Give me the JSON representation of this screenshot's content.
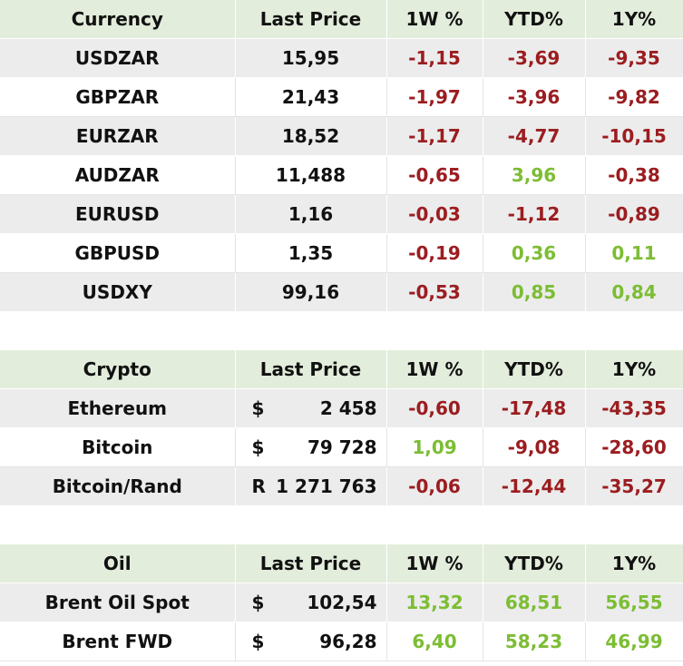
{
  "currency": {
    "header": [
      "Currency",
      "Last Price",
      "1W %",
      "YTD%",
      "1Y%"
    ],
    "rows": [
      {
        "name": "USDZAR",
        "price": "15,95",
        "w1": "-1,15",
        "ytd": "-3,69",
        "y1": "-9,35",
        "w1_sign": "neg",
        "ytd_sign": "neg",
        "y1_sign": "neg"
      },
      {
        "name": "GBPZAR",
        "price": "21,43",
        "w1": "-1,97",
        "ytd": "-3,96",
        "y1": "-9,82",
        "w1_sign": "neg",
        "ytd_sign": "neg",
        "y1_sign": "neg"
      },
      {
        "name": "EURZAR",
        "price": "18,52",
        "w1": "-1,17",
        "ytd": "-4,77",
        "y1": "-10,15",
        "w1_sign": "neg",
        "ytd_sign": "neg",
        "y1_sign": "neg"
      },
      {
        "name": "AUDZAR",
        "price": "11,488",
        "w1": "-0,65",
        "ytd": "3,96",
        "y1": "-0,38",
        "w1_sign": "neg",
        "ytd_sign": "pos",
        "y1_sign": "neg"
      },
      {
        "name": "EURUSD",
        "price": "1,16",
        "w1": "-0,03",
        "ytd": "-1,12",
        "y1": "-0,89",
        "w1_sign": "neg",
        "ytd_sign": "neg",
        "y1_sign": "neg"
      },
      {
        "name": "GBPUSD",
        "price": "1,35",
        "w1": "-0,19",
        "ytd": "0,36",
        "y1": "0,11",
        "w1_sign": "neg",
        "ytd_sign": "pos",
        "y1_sign": "pos"
      },
      {
        "name": "USDXY",
        "price": "99,16",
        "w1": "-0,53",
        "ytd": "0,85",
        "y1": "0,84",
        "w1_sign": "neg",
        "ytd_sign": "pos",
        "y1_sign": "pos"
      }
    ]
  },
  "crypto": {
    "header": [
      "Crypto",
      "Last Price",
      "1W %",
      "YTD%",
      "1Y%"
    ],
    "rows": [
      {
        "name": "Ethereum",
        "sym": "$",
        "price": "2 458",
        "w1": "-0,60",
        "ytd": "-17,48",
        "y1": "-43,35",
        "w1_sign": "neg",
        "ytd_sign": "neg",
        "y1_sign": "neg"
      },
      {
        "name": "Bitcoin",
        "sym": "$",
        "price": "79 728",
        "w1": "1,09",
        "ytd": "-9,08",
        "y1": "-28,60",
        "w1_sign": "pos",
        "ytd_sign": "neg",
        "y1_sign": "neg"
      },
      {
        "name": "Bitcoin/Rand",
        "sym": "R",
        "price": "1 271 763",
        "w1": "-0,06",
        "ytd": "-12,44",
        "y1": "-35,27",
        "w1_sign": "neg",
        "ytd_sign": "neg",
        "y1_sign": "neg"
      }
    ]
  },
  "oil": {
    "header": [
      "Oil",
      "Last Price",
      "1W %",
      "YTD%",
      "1Y%"
    ],
    "rows": [
      {
        "name": "Brent Oil Spot",
        "sym": "$",
        "price": "102,54",
        "w1": "13,32",
        "ytd": "68,51",
        "y1": "56,55",
        "w1_sign": "pos",
        "ytd_sign": "pos",
        "y1_sign": "pos"
      },
      {
        "name": "Brent FWD",
        "sym": "$",
        "price": "96,28",
        "w1": "6,40",
        "ytd": "58,23",
        "y1": "46,99",
        "w1_sign": "pos",
        "ytd_sign": "pos",
        "y1_sign": "pos"
      }
    ]
  },
  "colors": {
    "negative": "#9b1d20",
    "positive": "#7cbd33",
    "header_bg": "#e3eddb",
    "stripe_bg": "#ececec"
  }
}
